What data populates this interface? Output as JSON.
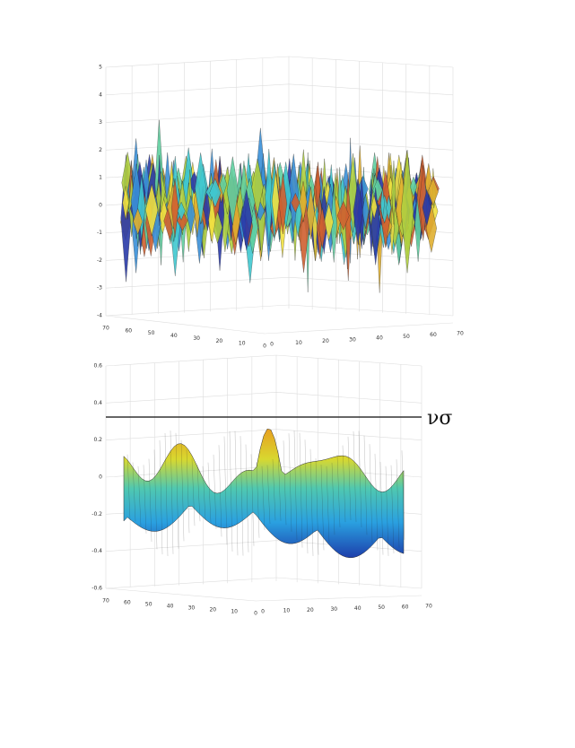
{
  "figure": {
    "top": {
      "zticks": [
        "5",
        "4",
        "3",
        "2",
        "1",
        "0",
        "-1",
        "-2",
        "-3",
        "-4"
      ],
      "left_ticks": [
        "70",
        "60",
        "50",
        "40",
        "30",
        "20",
        "10",
        "0"
      ],
      "right_ticks": [
        "0",
        "10",
        "20",
        "30",
        "40",
        "50",
        "60",
        "70"
      ]
    },
    "bottom": {
      "zticks": [
        "0.6",
        "0.4",
        "0.2",
        "0",
        "-0.2",
        "-0.4",
        "-0.6"
      ],
      "left_ticks": [
        "70",
        "60",
        "50",
        "40",
        "30",
        "20",
        "10",
        "0"
      ],
      "right_ticks": [
        "0",
        "10",
        "20",
        "30",
        "40",
        "50",
        "60",
        "70"
      ]
    },
    "annotation": "νσ"
  }
}
